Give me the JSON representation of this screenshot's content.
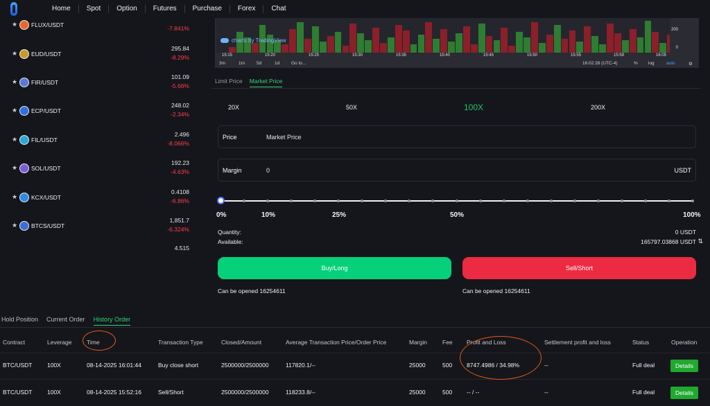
{
  "nav": {
    "items": [
      "Home",
      "Spot",
      "Option",
      "Futures",
      "Purchase",
      "Forex",
      "Chat"
    ]
  },
  "pairs": [
    {
      "name": "FLUX/USDT",
      "price": "",
      "change": "-7.841%",
      "icon_color": "#e8682a"
    },
    {
      "name": "EUD/USDT",
      "price": "295.84",
      "change": "-8.29%",
      "icon_color": "#c79a2e"
    },
    {
      "name": "FIR/USDT",
      "price": "101.09",
      "change": "-5.66%",
      "icon_color": "#5a79d8"
    },
    {
      "name": "ECP/USDT",
      "price": "248.02",
      "change": "-2.34%",
      "icon_color": "#2c6fe0"
    },
    {
      "name": "FIL/USDT",
      "price": "2.496",
      "change": "-8.066%",
      "icon_color": "#2aa7d8"
    },
    {
      "name": "SOL/USDT",
      "price": "192.23",
      "change": "-4.63%",
      "icon_color": "#7b5cd6"
    },
    {
      "name": "KCX/USDT",
      "price": "0.4108",
      "change": "-6.86%",
      "icon_color": "#2c8be0"
    },
    {
      "name": "BTCS/USDT",
      "price": "1,851.7",
      "change": "-6.324%",
      "icon_color": "#3b6fd8"
    },
    {
      "name": "",
      "price": "4.515",
      "change": "",
      "icon_color": "#15161b"
    }
  ],
  "chart": {
    "tradingview_label": "charts by TradingView",
    "axis_values": [
      "200",
      "0"
    ],
    "time_labels": [
      "15:15",
      "15:20",
      "15:25",
      "15:30",
      "15:35",
      "15:40",
      "15:45",
      "15:50",
      "15:55",
      "15:59",
      "16:05"
    ],
    "intervals": [
      "3m",
      "1m",
      "5d",
      "1d",
      "Go to..."
    ],
    "clock": "16:02:28 (UTC-4)",
    "options": [
      "%",
      "log",
      "auto"
    ],
    "up_color": "#2e7d32",
    "down_color": "#8b1f2a"
  },
  "order_tabs": [
    "Limit Price",
    "Market Price"
  ],
  "leverage": {
    "options": [
      "20X",
      "50X",
      "100X",
      "200X"
    ],
    "selected": "100X"
  },
  "price_field": {
    "label": "Price",
    "value": "Market Price"
  },
  "margin_field": {
    "label": "Margin",
    "value": "0",
    "unit": "USDT"
  },
  "slider": {
    "value_percent": 0,
    "labels": [
      "0%",
      "10%",
      "25%",
      "50%",
      "100%"
    ]
  },
  "quantity": {
    "label": "Quantity:",
    "value": "0 USDT"
  },
  "available": {
    "label": "Available:",
    "value": "165797.03868 USDT"
  },
  "buy_button": "Buy/Long",
  "sell_button": "Sell/Short",
  "can_open_buy": "Can be opened 16254611",
  "can_open_sell": "Can be opened 16254611",
  "bottom_tabs": [
    "Hold Position",
    "Current Order",
    "History Order"
  ],
  "table": {
    "headers": [
      "Contract",
      "Leverage",
      "Time",
      "Transaction Type",
      "Closed/Amount",
      "Average Transaction Price/Order Price",
      "Margin",
      "Fee",
      "Profit and Loss",
      "Settlement profit and loss",
      "Status",
      "Operation"
    ],
    "rows": [
      [
        "BTC/USDT",
        "100X",
        "08-14-2025 16:01:44",
        "Buy close short",
        "2500000/2500000",
        "117820.1/--",
        "25000",
        "500",
        "8747.4986 / 34.98%",
        "--",
        "Full deal",
        "Details"
      ],
      [
        "BTC/USDT",
        "100X",
        "08-14-2025 15:52:16",
        "Sell/Short",
        "2500000/2500000",
        "118233.8/--",
        "25000",
        "500",
        "-- / --",
        "--",
        "Full deal",
        "Details"
      ]
    ]
  },
  "colors": {
    "accent_green": "#2fd47a",
    "buy": "#06d17a",
    "sell": "#ec2b42",
    "negative": "#ff3d4d"
  }
}
